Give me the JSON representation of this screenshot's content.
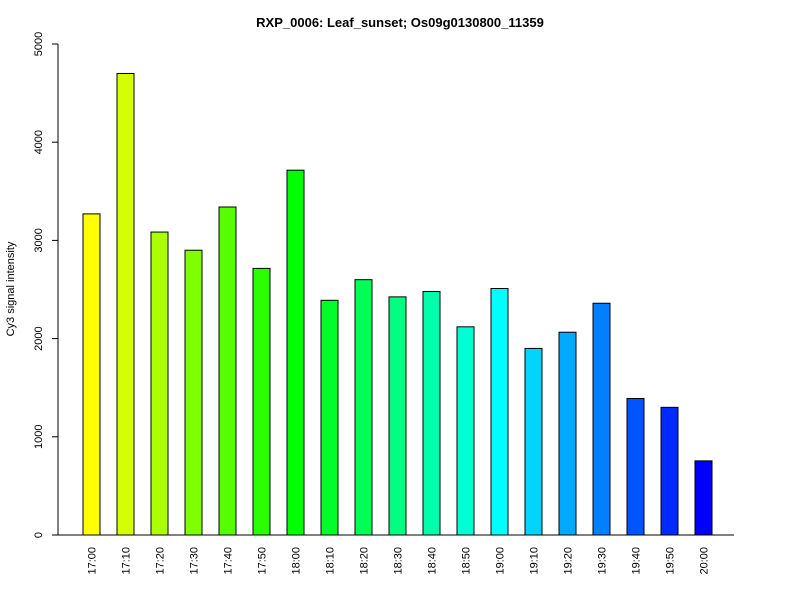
{
  "chart_data": {
    "type": "bar",
    "title": "RXP_0006: Leaf_sunset; Os09g0130800_11359",
    "xlabel": "",
    "ylabel": "Cy3 signal intensity",
    "ylim": [
      0,
      5000
    ],
    "yticks": [
      0,
      1000,
      2000,
      3000,
      4000,
      5000
    ],
    "grid": false,
    "categories": [
      "17:00",
      "17:10",
      "17:20",
      "17:30",
      "17:40",
      "17:50",
      "18:00",
      "18:10",
      "18:20",
      "18:30",
      "18:40",
      "18:50",
      "19:00",
      "19:10",
      "19:20",
      "19:30",
      "19:40",
      "19:50",
      "20:00"
    ],
    "values": [
      3270,
      4700,
      3085,
      2900,
      3340,
      2715,
      3715,
      2390,
      2600,
      2425,
      2480,
      2120,
      2510,
      1900,
      2065,
      2360,
      1390,
      1300,
      755
    ],
    "colors": [
      "#ffff00",
      "#d4ff00",
      "#aaff00",
      "#80ff00",
      "#55ff00",
      "#2aff00",
      "#00ff00",
      "#00ff2a",
      "#00ff55",
      "#00ff80",
      "#00ffaa",
      "#00ffd4",
      "#00ffff",
      "#00d4ff",
      "#00aaff",
      "#0080ff",
      "#0055ff",
      "#002aff",
      "#0000ff"
    ]
  }
}
